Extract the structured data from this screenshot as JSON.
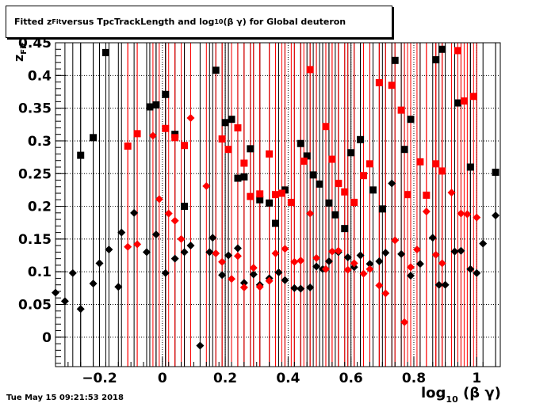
{
  "title": {
    "prefix": "Fitted  z",
    "sub": "Fit",
    "middle": "  versus TpcTrackLength and log",
    "log_sub": "10",
    "suffix": " (β γ) for Global deuteron"
  },
  "footer": "Tue May 15 09:21:53 2018",
  "x_axis_title": {
    "main": "log",
    "sub": "10",
    "rest": " (β γ)"
  },
  "y_axis_title": {
    "main": "z",
    "sub": "Fit"
  },
  "chart_data": {
    "type": "scatter",
    "xlim": [
      -0.34,
      1.075
    ],
    "ylim": [
      -0.045,
      0.45
    ],
    "x_ticks": [
      -0.2,
      0,
      0.2,
      0.4,
      0.6,
      0.8,
      1
    ],
    "x_tick_labels": [
      "−0.2",
      "0",
      "0.2",
      "0.4",
      "0.6",
      "0.8",
      "1"
    ],
    "y_ticks": [
      0,
      0.05,
      0.1,
      0.15,
      0.2,
      0.25,
      0.3,
      0.35,
      0.4,
      0.45
    ],
    "y_tick_labels": [
      "0",
      "0.05",
      "0.1",
      "0.15",
      "0.2",
      "0.25",
      "0.3",
      "0.35",
      "0.4",
      "0.45"
    ],
    "grid": true,
    "series": [
      {
        "marker": "square",
        "color": "#000000",
        "points": [
          [
            -0.26,
            0.278
          ],
          [
            -0.22,
            0.305
          ],
          [
            -0.18,
            0.435
          ],
          [
            -0.04,
            0.352
          ],
          [
            -0.02,
            0.355
          ],
          [
            0.01,
            0.371
          ],
          [
            0.04,
            0.31
          ],
          [
            0.07,
            0.2
          ],
          [
            0.17,
            0.408
          ],
          [
            0.2,
            0.328
          ],
          [
            0.22,
            0.333
          ],
          [
            0.24,
            0.243
          ],
          [
            0.26,
            0.245
          ],
          [
            0.28,
            0.288
          ],
          [
            0.31,
            0.21
          ],
          [
            0.34,
            0.205
          ],
          [
            0.36,
            0.174
          ],
          [
            0.39,
            0.225
          ],
          [
            0.44,
            0.296
          ],
          [
            0.46,
            0.277
          ],
          [
            0.48,
            0.248
          ],
          [
            0.5,
            0.234
          ],
          [
            0.53,
            0.205
          ],
          [
            0.55,
            0.187
          ],
          [
            0.58,
            0.166
          ],
          [
            0.6,
            0.282
          ],
          [
            0.63,
            0.302
          ],
          [
            0.67,
            0.225
          ],
          [
            0.7,
            0.196
          ],
          [
            0.74,
            0.423
          ],
          [
            0.77,
            0.287
          ],
          [
            0.79,
            0.333
          ],
          [
            0.87,
            0.424
          ],
          [
            0.89,
            0.44
          ],
          [
            0.94,
            0.358
          ],
          [
            0.98,
            0.26
          ],
          [
            1.06,
            0.252
          ]
        ]
      },
      {
        "marker": "square",
        "color": "#ff0000",
        "points": [
          [
            -0.11,
            0.292
          ],
          [
            -0.08,
            0.311
          ],
          [
            0.01,
            0.319
          ],
          [
            0.04,
            0.305
          ],
          [
            0.07,
            0.293
          ],
          [
            0.19,
            0.303
          ],
          [
            0.21,
            0.287
          ],
          [
            0.24,
            0.32
          ],
          [
            0.26,
            0.266
          ],
          [
            0.28,
            0.215
          ],
          [
            0.31,
            0.219
          ],
          [
            0.34,
            0.28
          ],
          [
            0.36,
            0.218
          ],
          [
            0.38,
            0.22
          ],
          [
            0.41,
            0.206
          ],
          [
            0.45,
            0.269
          ],
          [
            0.47,
            0.409
          ],
          [
            0.52,
            0.322
          ],
          [
            0.54,
            0.272
          ],
          [
            0.56,
            0.235
          ],
          [
            0.58,
            0.222
          ],
          [
            0.61,
            0.206
          ],
          [
            0.64,
            0.247
          ],
          [
            0.66,
            0.265
          ],
          [
            0.69,
            0.389
          ],
          [
            0.73,
            0.385
          ],
          [
            0.76,
            0.347
          ],
          [
            0.78,
            0.218
          ],
          [
            0.82,
            0.268
          ],
          [
            0.84,
            0.217
          ],
          [
            0.87,
            0.265
          ],
          [
            0.89,
            0.254
          ],
          [
            0.94,
            0.438
          ],
          [
            0.96,
            0.361
          ],
          [
            0.99,
            0.368
          ]
        ]
      },
      {
        "marker": "diamond",
        "color": "#000000",
        "points": [
          [
            -0.34,
            0.068
          ],
          [
            -0.31,
            0.055
          ],
          [
            -0.285,
            0.098
          ],
          [
            -0.26,
            0.043
          ],
          [
            -0.22,
            0.082
          ],
          [
            -0.2,
            0.113
          ],
          [
            -0.17,
            0.134
          ],
          [
            -0.14,
            0.077
          ],
          [
            -0.13,
            0.16
          ],
          [
            -0.09,
            0.19
          ],
          [
            -0.05,
            0.13
          ],
          [
            -0.02,
            0.157
          ],
          [
            0.01,
            0.098
          ],
          [
            0.04,
            0.12
          ],
          [
            0.07,
            0.13
          ],
          [
            0.09,
            0.14
          ],
          [
            0.12,
            -0.013
          ],
          [
            0.15,
            0.13
          ],
          [
            0.16,
            0.152
          ],
          [
            0.19,
            0.095
          ],
          [
            0.21,
            0.125
          ],
          [
            0.24,
            0.136
          ],
          [
            0.26,
            0.083
          ],
          [
            0.29,
            0.096
          ],
          [
            0.31,
            0.08
          ],
          [
            0.34,
            0.09
          ],
          [
            0.37,
            0.099
          ],
          [
            0.39,
            0.087
          ],
          [
            0.42,
            0.075
          ],
          [
            0.44,
            0.074
          ],
          [
            0.47,
            0.076
          ],
          [
            0.49,
            0.108
          ],
          [
            0.51,
            0.104
          ],
          [
            0.53,
            0.116
          ],
          [
            0.56,
            0.13
          ],
          [
            0.59,
            0.122
          ],
          [
            0.61,
            0.107
          ],
          [
            0.63,
            0.125
          ],
          [
            0.66,
            0.112
          ],
          [
            0.69,
            0.116
          ],
          [
            0.71,
            0.129
          ],
          [
            0.73,
            0.235
          ],
          [
            0.76,
            0.127
          ],
          [
            0.79,
            0.094
          ],
          [
            0.82,
            0.112
          ],
          [
            0.86,
            0.152
          ],
          [
            0.88,
            0.08
          ],
          [
            0.9,
            0.08
          ],
          [
            0.93,
            0.131
          ],
          [
            0.95,
            0.132
          ],
          [
            0.98,
            0.104
          ],
          [
            1.0,
            0.098
          ],
          [
            1.02,
            0.143
          ],
          [
            1.06,
            0.186
          ]
        ]
      },
      {
        "marker": "diamond",
        "color": "#ff0000",
        "points": [
          [
            -0.11,
            0.138
          ],
          [
            -0.08,
            0.142
          ],
          [
            -0.03,
            0.308
          ],
          [
            -0.01,
            0.211
          ],
          [
            0.02,
            0.189
          ],
          [
            0.04,
            0.178
          ],
          [
            0.06,
            0.15
          ],
          [
            0.09,
            0.335
          ],
          [
            0.14,
            0.231
          ],
          [
            0.17,
            0.128
          ],
          [
            0.19,
            0.115
          ],
          [
            0.22,
            0.089
          ],
          [
            0.24,
            0.124
          ],
          [
            0.26,
            0.076
          ],
          [
            0.29,
            0.106
          ],
          [
            0.31,
            0.077
          ],
          [
            0.34,
            0.086
          ],
          [
            0.36,
            0.128
          ],
          [
            0.39,
            0.135
          ],
          [
            0.42,
            0.115
          ],
          [
            0.44,
            0.117
          ],
          [
            0.47,
            0.189
          ],
          [
            0.49,
            0.121
          ],
          [
            0.52,
            0.104
          ],
          [
            0.54,
            0.131
          ],
          [
            0.56,
            0.132
          ],
          [
            0.59,
            0.103
          ],
          [
            0.61,
            0.113
          ],
          [
            0.64,
            0.097
          ],
          [
            0.66,
            0.104
          ],
          [
            0.69,
            0.079
          ],
          [
            0.71,
            0.067
          ],
          [
            0.74,
            0.148
          ],
          [
            0.77,
            0.023
          ],
          [
            0.79,
            0.107
          ],
          [
            0.81,
            0.134
          ],
          [
            0.84,
            0.192
          ],
          [
            0.87,
            0.126
          ],
          [
            0.89,
            0.113
          ],
          [
            0.92,
            0.221
          ],
          [
            0.95,
            0.189
          ],
          [
            0.97,
            0.188
          ],
          [
            1.0,
            0.183
          ]
        ]
      }
    ]
  }
}
